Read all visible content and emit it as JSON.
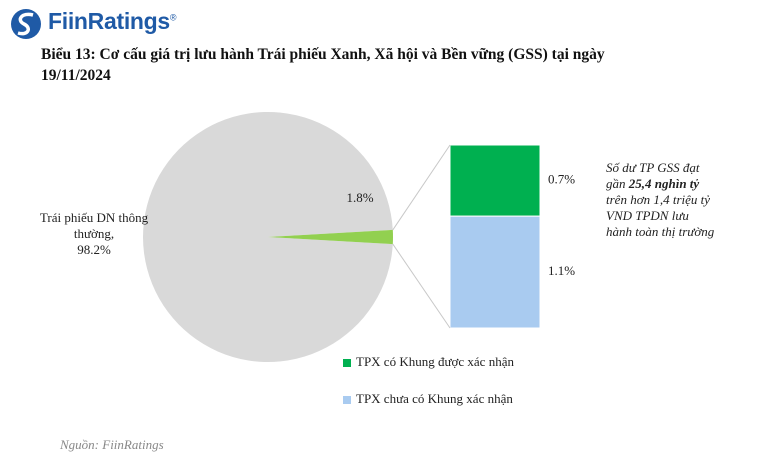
{
  "logo": {
    "name": "FiinRatings",
    "mark": "®"
  },
  "title": "Biểu 13: Cơ cấu giá trị lưu hành Trái phiếu Xanh, Xã hội và Bền vững (GSS) tại ngày 19/11/2024",
  "chart_data": [
    {
      "type": "pie",
      "categories": [
        "Trái phiếu DN thông thường,",
        null
      ],
      "values": [
        98.2,
        1.8
      ],
      "value_labels": [
        "98.2%",
        "1.8%"
      ],
      "colors": [
        "#d9d9d9",
        "#92d050"
      ]
    },
    {
      "type": "bar",
      "stacked": true,
      "categories": [
        null
      ],
      "series": [
        {
          "name": "TPX có Khung được xác nhận",
          "color": "#00b050",
          "values": [
            0.7
          ],
          "value_labels": [
            "0.7%"
          ]
        },
        {
          "name": "TPX chưa có Khung xác nhận",
          "color": "#a9cbf0",
          "values": [
            1.1
          ],
          "value_labels": [
            "1.1%"
          ]
        }
      ]
    }
  ],
  "annotation": [
    "Số dư TP GSS đạt gần",
    "25,4 nghìn tỷ",
    "trên hơn 1,4 triệu tỷ VND TPDN lưu hành toàn thị trường"
  ],
  "source": "Nguồn: FiinRatings"
}
